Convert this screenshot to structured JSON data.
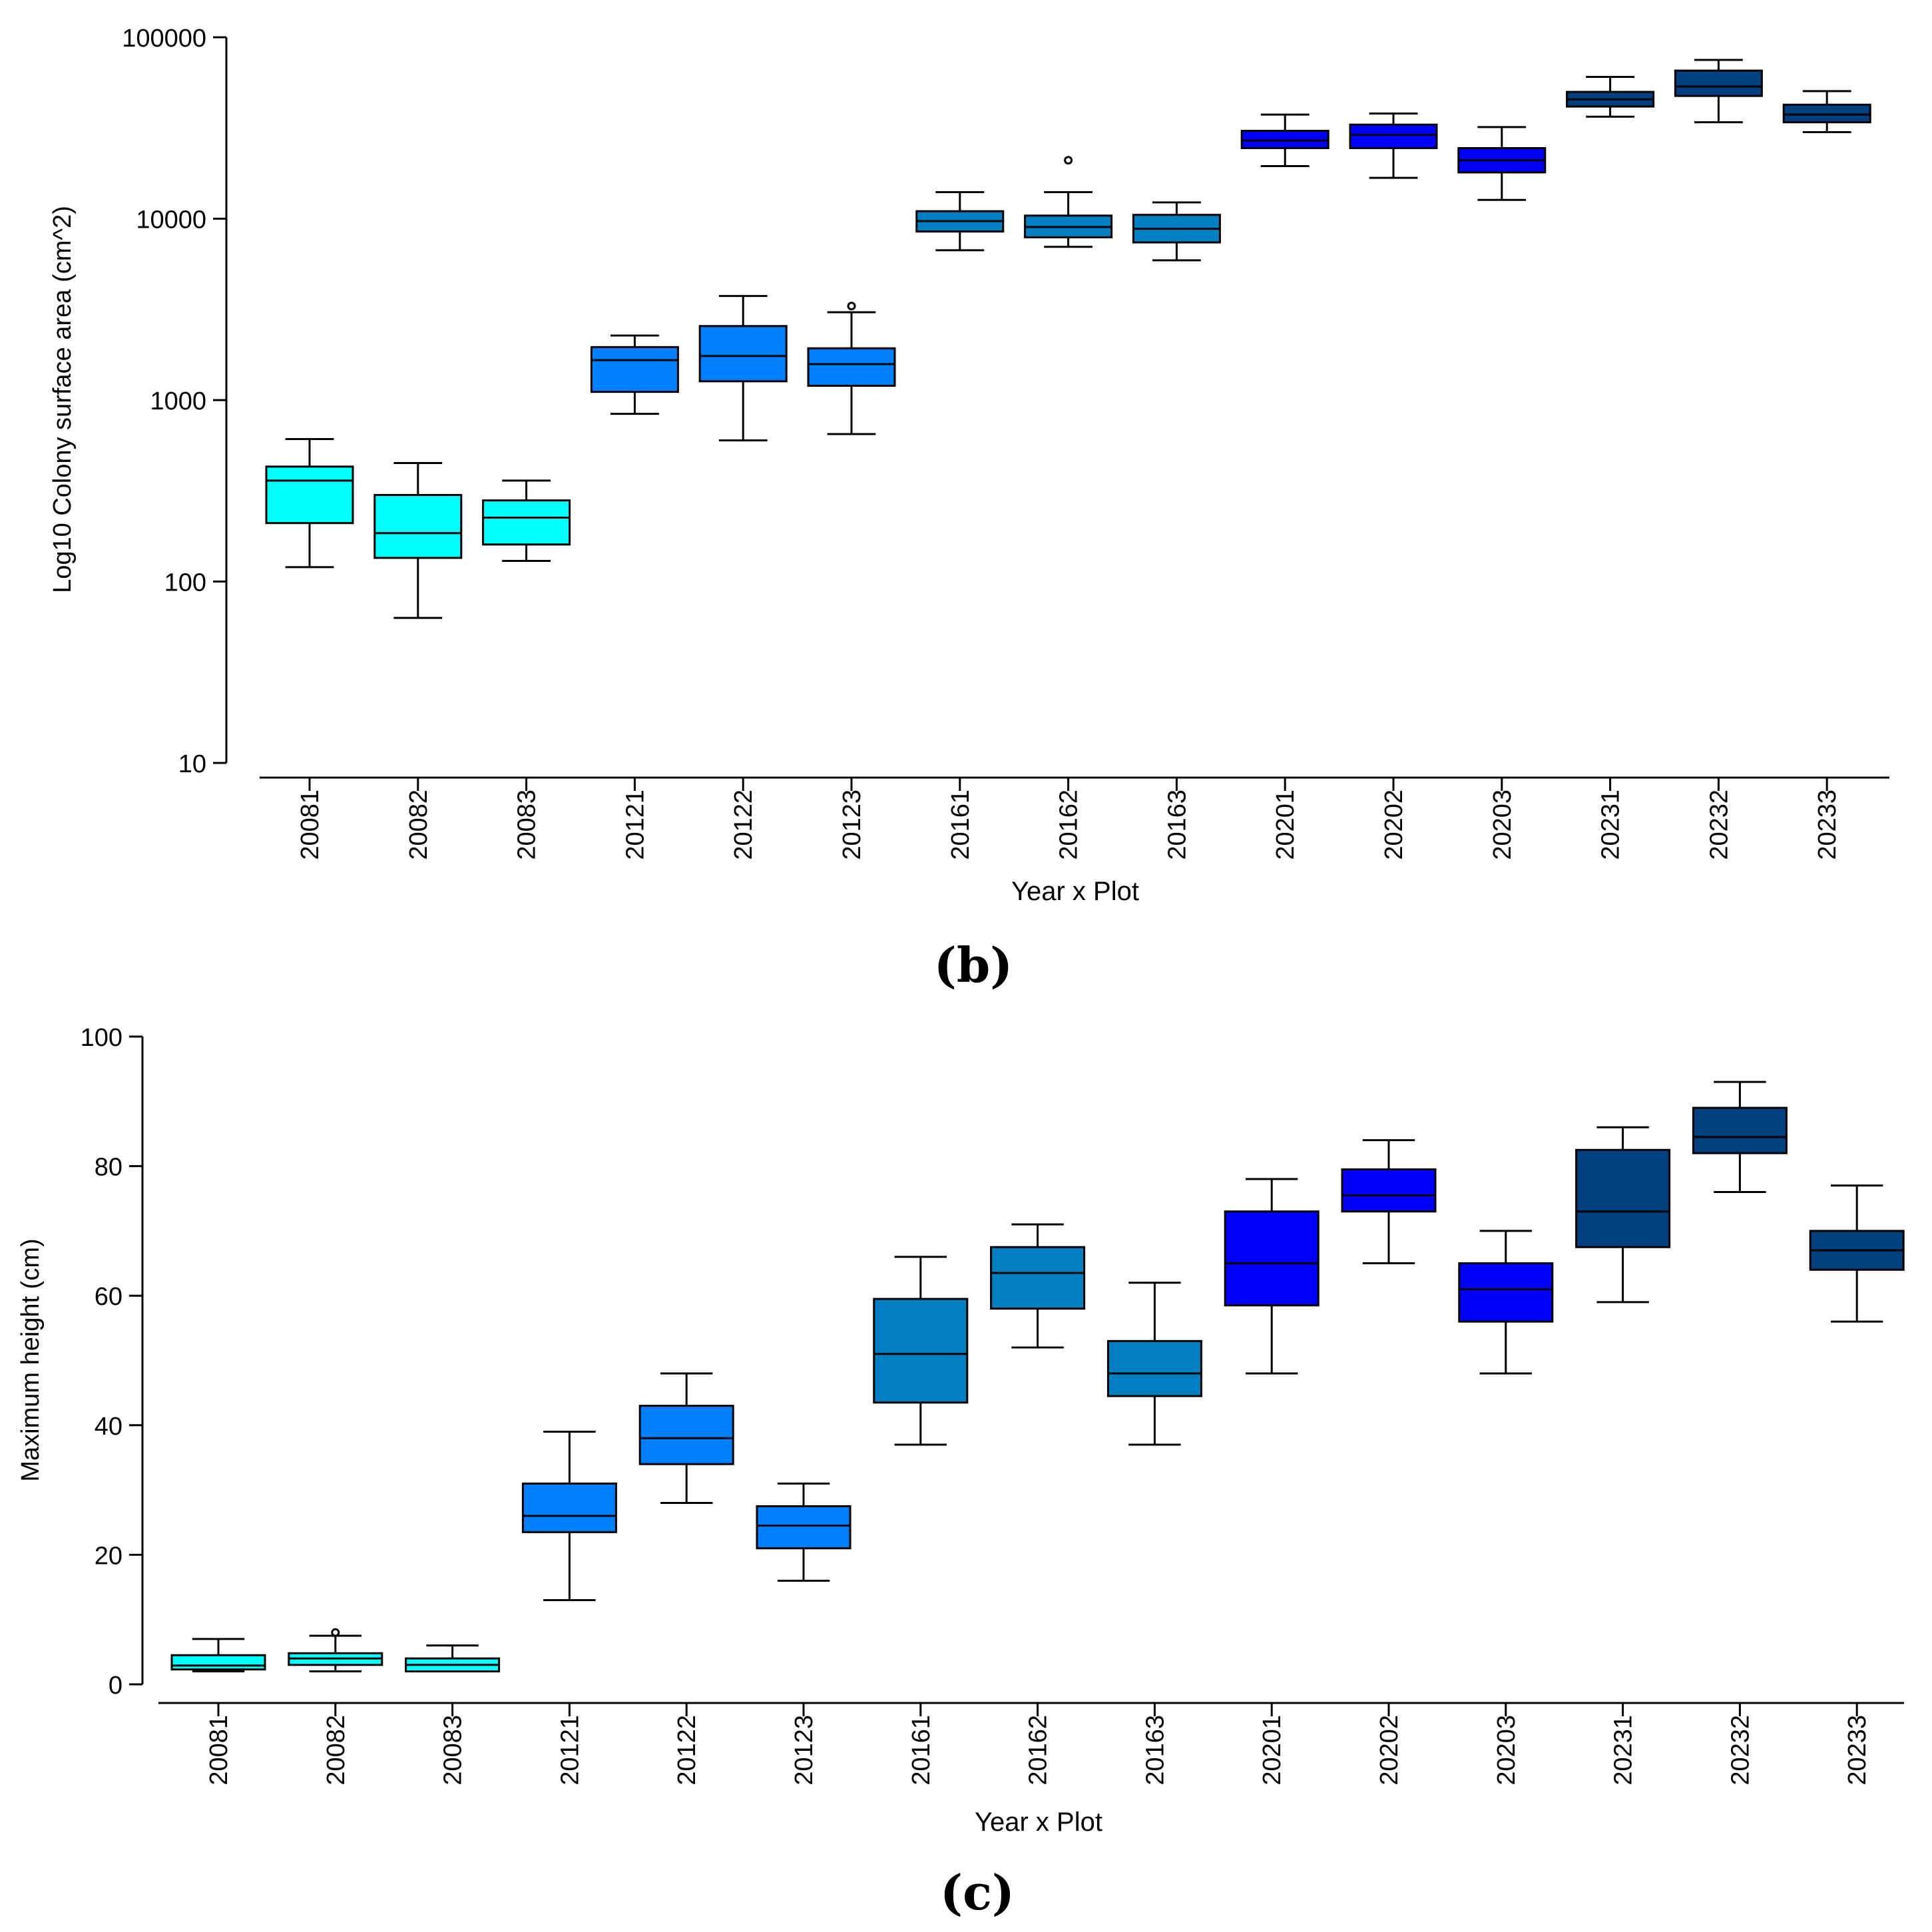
{
  "chart_data": [
    {
      "type": "box",
      "panel_label": "(b)",
      "title": "",
      "xlabel": "Year x Plot",
      "ylabel": "Log10 Colony surface area (cm^2)",
      "yscale": "log",
      "ylim": [
        10,
        100000
      ],
      "yticks": [
        "10",
        "100",
        "1000",
        "10000",
        "100000"
      ],
      "categories": [
        "20081",
        "20082",
        "20083",
        "20121",
        "20122",
        "20123",
        "20161",
        "20162",
        "20163",
        "20201",
        "20202",
        "20203",
        "20231",
        "20232",
        "20233"
      ],
      "colors": [
        "#00FFFF",
        "#00FFFF",
        "#00FFFF",
        "#0080FF",
        "#0080FF",
        "#0080FF",
        "#0080C0",
        "#0080C0",
        "#0080C0",
        "#0000FF",
        "#0000FF",
        "#0000FF",
        "#004080",
        "#004080",
        "#004080"
      ],
      "boxes": [
        {
          "min": 120,
          "q1": 210,
          "median": 360,
          "q3": 430,
          "max": 610,
          "outliers": []
        },
        {
          "min": 63,
          "q1": 135,
          "median": 185,
          "q3": 300,
          "max": 450,
          "outliers": []
        },
        {
          "min": 130,
          "q1": 160,
          "median": 225,
          "q3": 280,
          "max": 360,
          "outliers": []
        },
        {
          "min": 840,
          "q1": 1110,
          "median": 1660,
          "q3": 1960,
          "max": 2270,
          "outliers": []
        },
        {
          "min": 600,
          "q1": 1270,
          "median": 1750,
          "q3": 2560,
          "max": 3750,
          "outliers": []
        },
        {
          "min": 650,
          "q1": 1200,
          "median": 1580,
          "q3": 1930,
          "max": 3050,
          "outliers": [
            3300
          ]
        },
        {
          "min": 6700,
          "q1": 8500,
          "median": 9700,
          "q3": 11000,
          "max": 14000,
          "outliers": []
        },
        {
          "min": 7000,
          "q1": 7900,
          "median": 9000,
          "q3": 10400,
          "max": 14000,
          "outliers": [
            21000
          ]
        },
        {
          "min": 5900,
          "q1": 7400,
          "median": 8800,
          "q3": 10500,
          "max": 12300,
          "outliers": []
        },
        {
          "min": 19500,
          "q1": 24500,
          "median": 27000,
          "q3": 30500,
          "max": 37500,
          "outliers": []
        },
        {
          "min": 16800,
          "q1": 24500,
          "median": 29000,
          "q3": 33000,
          "max": 38000,
          "outliers": []
        },
        {
          "min": 12700,
          "q1": 18000,
          "median": 21000,
          "q3": 24500,
          "max": 32000,
          "outliers": []
        },
        {
          "min": 36500,
          "q1": 41500,
          "median": 45500,
          "q3": 50000,
          "max": 60500,
          "outliers": []
        },
        {
          "min": 34000,
          "q1": 47500,
          "median": 53500,
          "q3": 65500,
          "max": 75000,
          "outliers": []
        },
        {
          "min": 30000,
          "q1": 34000,
          "median": 37500,
          "q3": 42500,
          "max": 50500,
          "outliers": []
        }
      ]
    },
    {
      "type": "box",
      "panel_label": "(c)",
      "title": "",
      "xlabel": "Year x Plot",
      "ylabel": "Maximum height (cm)",
      "yscale": "linear",
      "ylim": [
        0,
        100
      ],
      "yticks": [
        "0",
        "20",
        "40",
        "60",
        "80",
        "100"
      ],
      "categories": [
        "20081",
        "20082",
        "20083",
        "20121",
        "20122",
        "20123",
        "20161",
        "20162",
        "20163",
        "20201",
        "20202",
        "20203",
        "20231",
        "20232",
        "20233"
      ],
      "colors": [
        "#00FFFF",
        "#00FFFF",
        "#00FFFF",
        "#0080FF",
        "#0080FF",
        "#0080FF",
        "#0080C0",
        "#0080C0",
        "#0080C0",
        "#0000FF",
        "#0000FF",
        "#0000FF",
        "#004080",
        "#004080",
        "#004080"
      ],
      "boxes": [
        {
          "min": 2,
          "q1": 2.3,
          "median": 2.9,
          "q3": 4.5,
          "max": 7,
          "outliers": []
        },
        {
          "min": 2,
          "q1": 3,
          "median": 4,
          "q3": 4.8,
          "max": 7.5,
          "outliers": [
            8
          ]
        },
        {
          "min": 2,
          "q1": 2,
          "median": 3,
          "q3": 4,
          "max": 6,
          "outliers": []
        },
        {
          "min": 13,
          "q1": 23.5,
          "median": 26,
          "q3": 31,
          "max": 39,
          "outliers": []
        },
        {
          "min": 28,
          "q1": 34,
          "median": 38,
          "q3": 43,
          "max": 48,
          "outliers": []
        },
        {
          "min": 16,
          "q1": 21,
          "median": 24.5,
          "q3": 27.5,
          "max": 31,
          "outliers": []
        },
        {
          "min": 37,
          "q1": 43.5,
          "median": 51,
          "q3": 59.5,
          "max": 66,
          "outliers": []
        },
        {
          "min": 52,
          "q1": 58,
          "median": 63.5,
          "q3": 67.5,
          "max": 71,
          "outliers": []
        },
        {
          "min": 37,
          "q1": 44.5,
          "median": 48,
          "q3": 53,
          "max": 62,
          "outliers": []
        },
        {
          "min": 48,
          "q1": 58.5,
          "median": 65,
          "q3": 73,
          "max": 78,
          "outliers": []
        },
        {
          "min": 65,
          "q1": 73,
          "median": 75.5,
          "q3": 79.5,
          "max": 84,
          "outliers": []
        },
        {
          "min": 48,
          "q1": 56,
          "median": 61,
          "q3": 65,
          "max": 70,
          "outliers": []
        },
        {
          "min": 59,
          "q1": 67.5,
          "median": 73,
          "q3": 82.5,
          "max": 86,
          "outliers": []
        },
        {
          "min": 76,
          "q1": 82,
          "median": 84.5,
          "q3": 89,
          "max": 93,
          "outliers": []
        },
        {
          "min": 56,
          "q1": 64,
          "median": 67,
          "q3": 70,
          "max": 77,
          "outliers": []
        }
      ]
    }
  ]
}
